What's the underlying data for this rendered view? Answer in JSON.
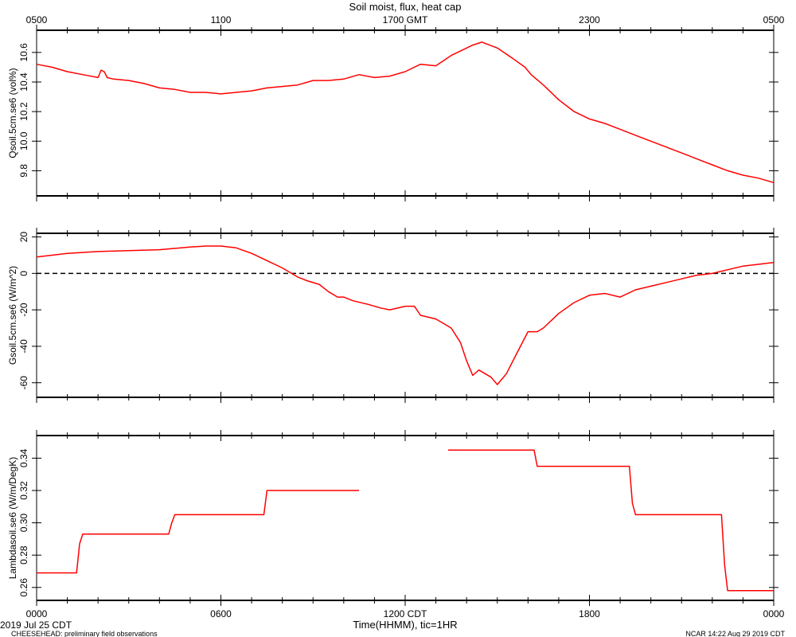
{
  "chart_data": [
    {
      "type": "line",
      "title": "Soil moist, flux, heat cap",
      "top_axis_ticks": [
        "0500",
        "1100",
        "1700 GMT",
        "2300",
        "0500"
      ],
      "ylabel": "Qsoil.5cm.se6 (vol%)",
      "ylim": [
        9.63,
        10.75
      ],
      "yticks": [
        9.8,
        10.0,
        10.2,
        10.4,
        10.6
      ],
      "ytick_labels": [
        "9.8",
        "10.0",
        "10.2",
        "10.4",
        "10.6"
      ],
      "series": [
        {
          "color": "#ff0000",
          "x": [
            0,
            0.5,
            1,
            1.5,
            2,
            2.1,
            2.2,
            2.3,
            2.5,
            3,
            3.5,
            4,
            4.5,
            5,
            5.5,
            6,
            6.5,
            7,
            7.5,
            8,
            8.5,
            9,
            9.5,
            10,
            10.5,
            11,
            11.5,
            12,
            12.5,
            13,
            13.5,
            14,
            14.2,
            14.5,
            15,
            15.5,
            15.9,
            16.1,
            16.5,
            17,
            17.5,
            18,
            18.5,
            19,
            19.5,
            20,
            20.5,
            21,
            21.5,
            22,
            22.5,
            23,
            23.5,
            24
          ],
          "y": [
            10.52,
            10.5,
            10.47,
            10.45,
            10.43,
            10.48,
            10.47,
            10.43,
            10.42,
            10.41,
            10.39,
            10.36,
            10.35,
            10.33,
            10.33,
            10.32,
            10.33,
            10.34,
            10.36,
            10.37,
            10.38,
            10.41,
            10.41,
            10.42,
            10.45,
            10.43,
            10.44,
            10.47,
            10.52,
            10.51,
            10.58,
            10.63,
            10.65,
            10.67,
            10.63,
            10.56,
            10.5,
            10.45,
            10.38,
            10.28,
            10.2,
            10.15,
            10.12,
            10.08,
            10.04,
            10.0,
            9.96,
            9.92,
            9.88,
            9.84,
            9.8,
            9.77,
            9.75,
            9.72
          ]
        }
      ]
    },
    {
      "type": "line",
      "ylabel": "Gsoil.5cm.se6 (W/m^2)",
      "ylim": [
        -68,
        22
      ],
      "yticks": [
        -60,
        -40,
        -20,
        0,
        20
      ],
      "ytick_labels": [
        "-60",
        "-40",
        "-20",
        "0",
        "20"
      ],
      "reference_line": 0,
      "series": [
        {
          "color": "#ff0000",
          "x": [
            0,
            1,
            2,
            3,
            4,
            5,
            5.5,
            6,
            6.5,
            7,
            7.5,
            8,
            8.5,
            8.8,
            9.2,
            9.5,
            9.8,
            10,
            10.3,
            10.8,
            11.2,
            11.5,
            12,
            12.3,
            12.5,
            13,
            13.5,
            13.8,
            14,
            14.2,
            14.4,
            14.6,
            14.8,
            15,
            15.3,
            15.6,
            16,
            16.3,
            16.5,
            17,
            17.5,
            18,
            18.5,
            19,
            19.5,
            20,
            20.5,
            21,
            21.5,
            22,
            23,
            24
          ],
          "y": [
            9,
            11,
            12,
            12.5,
            13,
            14.5,
            15,
            15,
            14,
            11,
            7,
            3,
            -2,
            -4,
            -6,
            -10,
            -13,
            -13,
            -15,
            -17,
            -19,
            -20,
            -18,
            -18,
            -23,
            -25,
            -30,
            -38,
            -48,
            -56,
            -53,
            -55,
            -57,
            -61,
            -55,
            -45,
            -32,
            -32,
            -30,
            -22,
            -16,
            -12,
            -11,
            -13,
            -9,
            -7,
            -5,
            -3,
            -1,
            0,
            4,
            6
          ]
        }
      ]
    },
    {
      "type": "line",
      "ylabel": "Lambdasoil.se6 (W/m/DegK)",
      "xlabel": "Time(HHMM), tic=1HR",
      "xticks": [
        "0000",
        "0600",
        "1200 CDT",
        "1800",
        "0000"
      ],
      "ylim": [
        0.252,
        0.354
      ],
      "yticks": [
        0.26,
        0.28,
        0.3,
        0.32,
        0.34
      ],
      "ytick_labels": [
        "0.26",
        "0.28",
        "0.30",
        "0.32",
        "0.34"
      ],
      "series": [
        {
          "color": "#ff0000",
          "segments": [
            {
              "x": [
                0,
                1.3,
                1.4,
                1.5,
                4.3,
                4.4,
                4.5,
                7.4,
                7.5,
                10.5
              ],
              "y": [
                0.269,
                0.269,
                0.287,
                0.293,
                0.293,
                0.3,
                0.305,
                0.305,
                0.32,
                0.32
              ]
            },
            {
              "x": [
                13.4,
                16.2,
                16.3,
                19.3,
                19.4,
                19.5,
                22.3,
                22.4,
                22.5,
                24
              ],
              "y": [
                0.345,
                0.345,
                0.335,
                0.335,
                0.312,
                0.305,
                0.305,
                0.274,
                0.258,
                0.258
              ]
            }
          ]
        }
      ]
    }
  ],
  "footer": {
    "date_label": "2019 Jul 25 CDT",
    "project_label": "CHEESEHEAD: preliminary field observations",
    "credit_label": "NCAR 14:22 Aug 29 2019 CDT"
  }
}
